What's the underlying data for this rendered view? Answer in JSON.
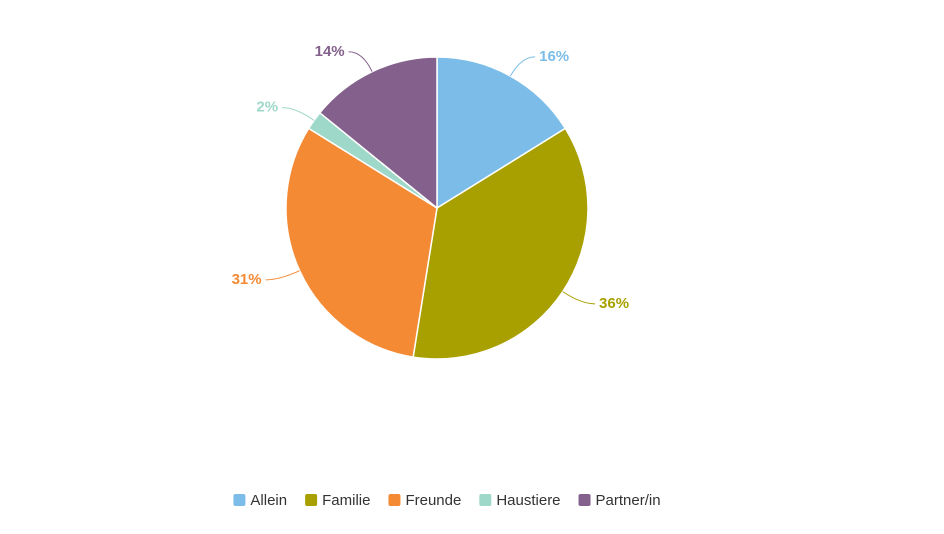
{
  "chart_data": {
    "type": "pie",
    "categories": [
      "Allein",
      "Familie",
      "Freunde",
      "Haustiere",
      "Partner/in"
    ],
    "values": [
      16,
      36,
      31,
      2,
      14
    ],
    "value_labels": [
      "16%",
      "36%",
      "31%",
      "2%",
      "14%"
    ],
    "colors": [
      "#7bbde8",
      "#a8a000",
      "#f48a34",
      "#9ed8c8",
      "#84608c"
    ],
    "legend": "bottom"
  }
}
